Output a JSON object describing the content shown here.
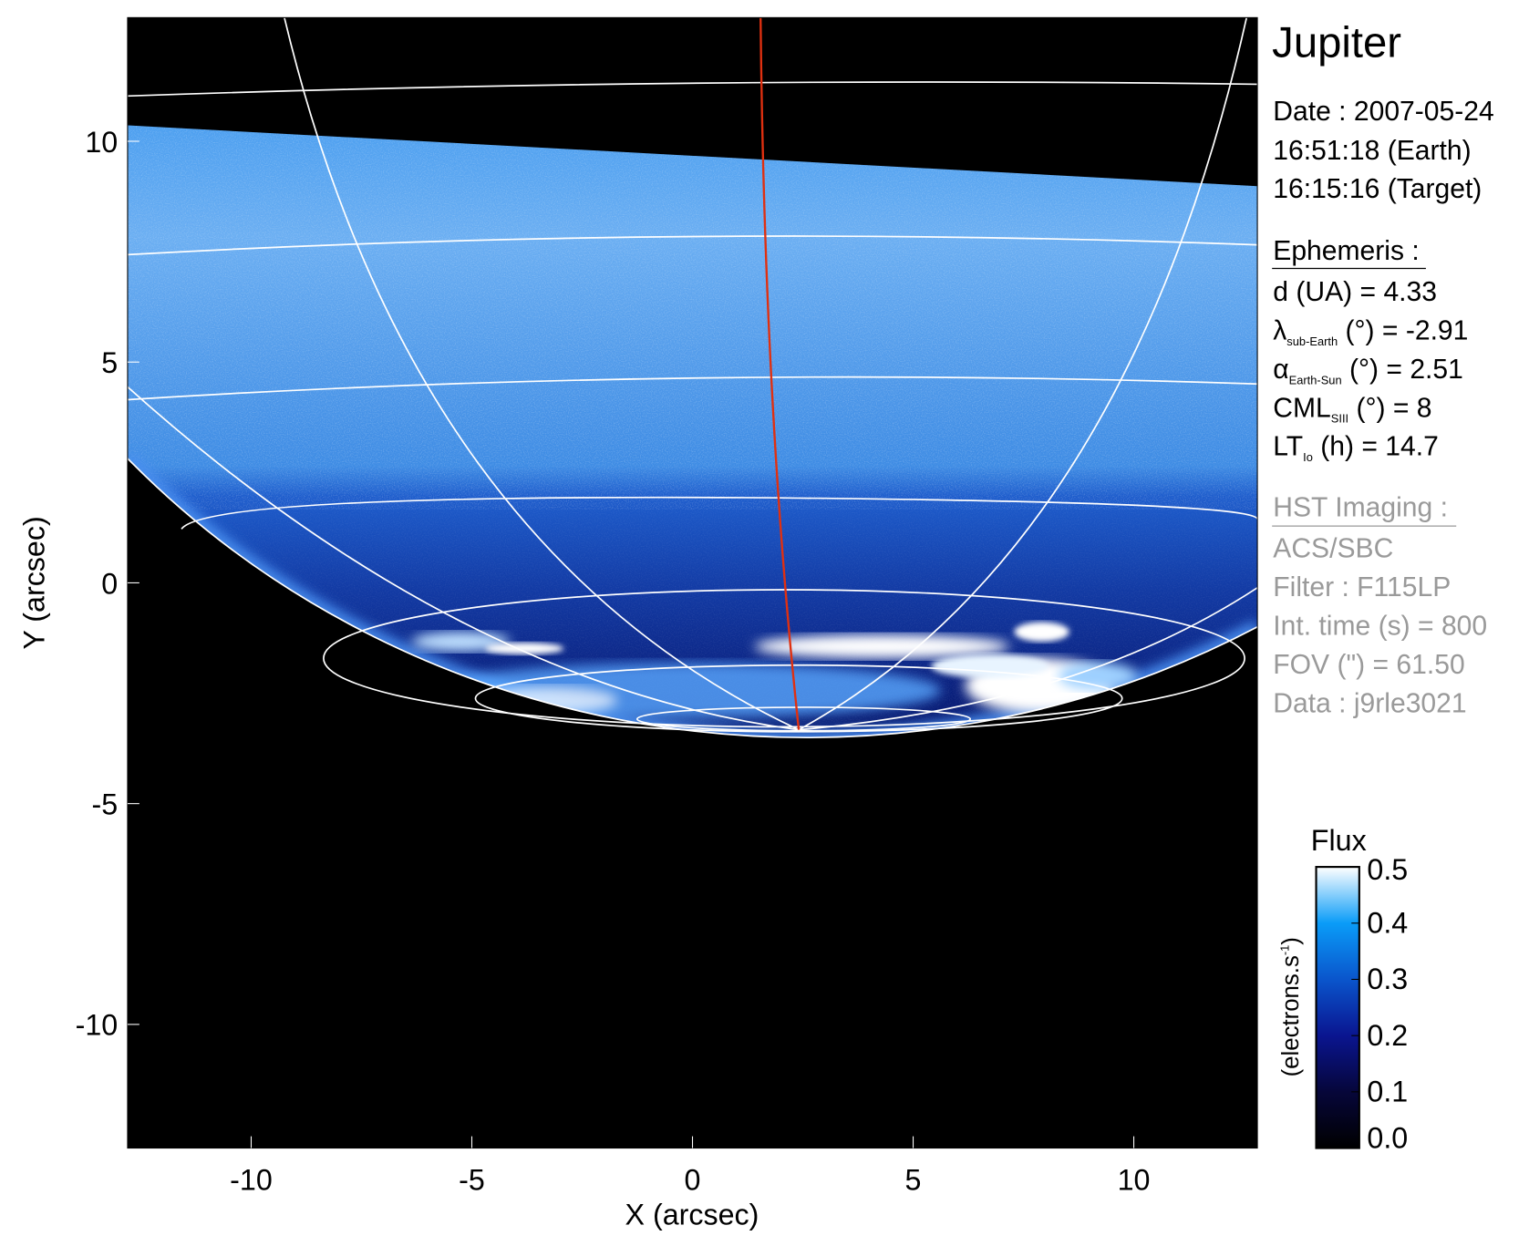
{
  "chart_data": {
    "type": "heatmap",
    "xlabel": "X (arcsec)",
    "ylabel": "Y (arcsec)",
    "xlim": [
      -12.8,
      12.8
    ],
    "ylim": [
      -12.8,
      12.8
    ],
    "xticks": [
      "-10",
      "-5",
      "0",
      "5",
      "10"
    ],
    "xtick_values": [
      -10,
      -5,
      0,
      5,
      10
    ],
    "yticks": [
      "10",
      "5",
      "0",
      "-5",
      "-10"
    ],
    "ytick_values": [
      10,
      5,
      0,
      -5,
      -10
    ],
    "colorbar": {
      "title": "Flux",
      "label": "(electrons.s",
      "label_sup": "-1",
      "label_end": ")",
      "range": [
        0.0,
        0.5
      ],
      "ticks": [
        "0.0",
        "0.1",
        "0.2",
        "0.3",
        "0.4",
        "0.5"
      ],
      "tick_values": [
        0.0,
        0.1,
        0.2,
        0.3,
        0.4,
        0.5
      ],
      "colors": [
        "#000000",
        "#06063a",
        "#0a1590",
        "#0a55cc",
        "#0a9cf8",
        "#ffffff"
      ]
    },
    "overlay_colors": {
      "grid": "#ffffff",
      "central_meridian": "#e03010"
    }
  },
  "info": {
    "title": "Jupiter",
    "date": "Date : 2007-05-24",
    "time_earth": "16:51:18 (Earth)",
    "time_target": "16:15:16 (Target)",
    "ephemeris_header": "Ephemeris :",
    "ephemeris": [
      {
        "sym": "d (UA)",
        "sub": "",
        "rest": "    = 4.33"
      },
      {
        "sym": "λ",
        "sub": "sub-Earth",
        "rest": " (°) = -2.91"
      },
      {
        "sym": "α",
        "sub": "Earth-Sun",
        "rest": " (°) = 2.51"
      },
      {
        "sym": "CML",
        "sub": "SIII",
        "rest": " (°) = 8"
      },
      {
        "sym": "LT",
        "sub": "Io",
        "rest": " (h) = 14.7"
      }
    ],
    "hst_header": "HST Imaging :",
    "hst": [
      "ACS/SBC",
      "Filter : F115LP",
      "Int. time (s) = 800",
      "FOV (\") = 61.50",
      "Data : j9rle3021"
    ]
  }
}
